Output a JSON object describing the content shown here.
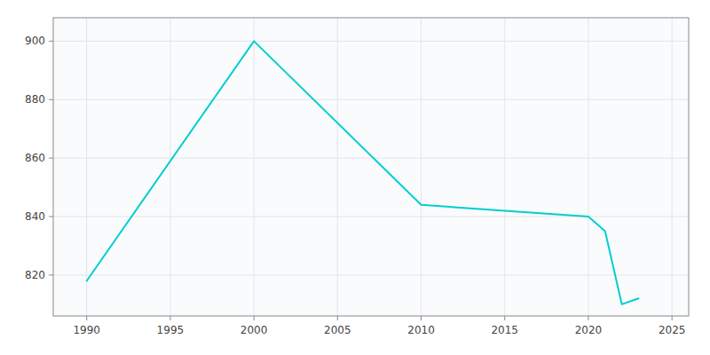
{
  "chart_data": {
    "type": "line",
    "x": [
      1990,
      2000,
      2010,
      2015,
      2020,
      2021,
      2022,
      2023
    ],
    "values": [
      818,
      900,
      844,
      842,
      840,
      835,
      810,
      812
    ],
    "color": "#00CED1",
    "xlim": [
      1988,
      2026
    ],
    "ylim": [
      806,
      908
    ],
    "xticks": [
      1990,
      1995,
      2000,
      2005,
      2010,
      2015,
      2020,
      2025
    ],
    "yticks": [
      820,
      840,
      860,
      880,
      900
    ],
    "grid": true
  }
}
